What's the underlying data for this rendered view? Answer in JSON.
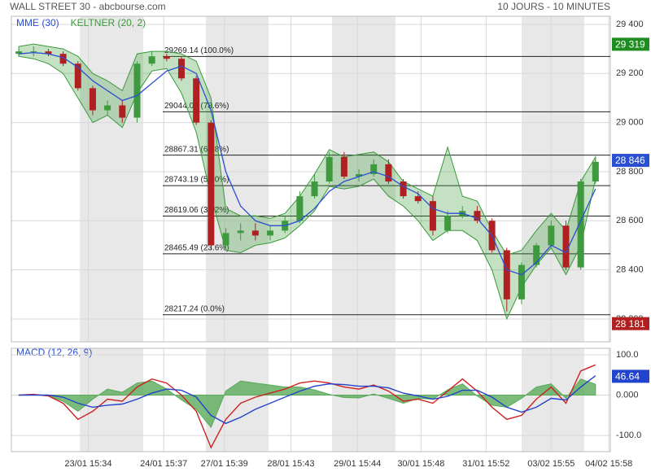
{
  "chart_data": [
    {
      "type": "candlestick",
      "title": "WALL STREET 30 - abcbourse.com",
      "subtitle": "10 JOURS - 10 MINUTES",
      "x": [
        0,
        1,
        2,
        3,
        4,
        5,
        6,
        7,
        8,
        9,
        10,
        11,
        12,
        13,
        14,
        15,
        16,
        17,
        18,
        19,
        20,
        21,
        22,
        23,
        24,
        25,
        26,
        27,
        28,
        29,
        30,
        31,
        32,
        33,
        34,
        35,
        36,
        37,
        38,
        39
      ],
      "xlim": [
        -0.5,
        40
      ],
      "xticks": [
        {
          "value": 4.7,
          "label": "23/01 15:34"
        },
        {
          "value": 9.8,
          "label": "24/01 15:37"
        },
        {
          "value": 13.9,
          "label": "27/01 15:39"
        },
        {
          "value": 18.4,
          "label": "28/01 15:43"
        },
        {
          "value": 22.9,
          "label": "29/01 15:44"
        },
        {
          "value": 27.2,
          "label": "30/01 15:48"
        },
        {
          "value": 31.6,
          "label": "31/01 15:52"
        },
        {
          "value": 36.0,
          "label": "03/02 15:55"
        },
        {
          "value": 39.9,
          "label": "04/02 15:58"
        }
      ],
      "ylim": [
        28107,
        29433
      ],
      "yticks": [
        {
          "value": 28200,
          "label": "28 200"
        },
        {
          "value": 28400,
          "label": "28 400"
        },
        {
          "value": 28600,
          "label": "28 600"
        },
        {
          "value": 28800,
          "label": "28 800"
        },
        {
          "value": 29000,
          "label": "29 000"
        },
        {
          "value": 29200,
          "label": "29 200"
        },
        {
          "value": 29400,
          "label": "29 400"
        }
      ],
      "grid": true,
      "up_color": "#3f9a3f",
      "down_color": "#b02020",
      "open": [
        29280,
        29290,
        29290,
        29280,
        29240,
        29140,
        29050,
        29070,
        29020,
        29240,
        29270,
        29260,
        29180,
        29000,
        28500,
        28550,
        28560,
        28540,
        28560,
        28600,
        28700,
        28760,
        28860,
        28780,
        28790,
        28830,
        28760,
        28700,
        28680,
        28560,
        28620,
        28640,
        28600,
        28480,
        28280,
        28420,
        28500,
        28580,
        28410,
        28760
      ],
      "high": [
        29300,
        29310,
        29300,
        29290,
        29250,
        29150,
        29090,
        29090,
        29250,
        29290,
        29280,
        29270,
        29190,
        29010,
        28570,
        28590,
        28590,
        28580,
        28620,
        28720,
        28790,
        28880,
        28880,
        28810,
        28850,
        28850,
        28770,
        28720,
        28700,
        28640,
        28660,
        28660,
        28610,
        28490,
        28430,
        28510,
        28600,
        28600,
        28770,
        28860
      ],
      "low": [
        29270,
        29270,
        29270,
        29230,
        29130,
        29030,
        29030,
        29000,
        29000,
        29230,
        29250,
        29170,
        28990,
        28480,
        28490,
        28520,
        28520,
        28520,
        28550,
        28590,
        28690,
        28750,
        28770,
        28760,
        28780,
        28750,
        28690,
        28670,
        28540,
        28550,
        28610,
        28590,
        28470,
        28230,
        28260,
        28410,
        28490,
        28400,
        28400,
        28750
      ],
      "close": [
        29290,
        29290,
        29280,
        29240,
        29140,
        29050,
        29070,
        29020,
        29240,
        29270,
        29260,
        29180,
        29000,
        28500,
        28550,
        28560,
        28540,
        28560,
        28600,
        28700,
        28760,
        28860,
        28780,
        28790,
        28830,
        28760,
        28700,
        28680,
        28560,
        28620,
        28640,
        28600,
        28480,
        28280,
        28420,
        28500,
        28580,
        28410,
        28760,
        28840
      ],
      "series": [
        {
          "name": "MME (30)",
          "color": "#2a4fd0",
          "values": [
            29280,
            29285,
            29280,
            29265,
            29225,
            29170,
            29130,
            29090,
            29110,
            29160,
            29210,
            29230,
            29200,
            29050,
            28800,
            28660,
            28600,
            28580,
            28580,
            28600,
            28650,
            28720,
            28760,
            28780,
            28800,
            28780,
            28740,
            28710,
            28650,
            28630,
            28630,
            28610,
            28540,
            28400,
            28380,
            28430,
            28500,
            28470,
            28600,
            28730
          ]
        },
        {
          "name": "KELTNER (20, 2)",
          "color": "#3a9a3a",
          "upper": [
            29310,
            29320,
            29310,
            29300,
            29270,
            29200,
            29170,
            29130,
            29280,
            29290,
            29290,
            29280,
            29250,
            29100,
            28650,
            28620,
            28620,
            28610,
            28630,
            28700,
            28790,
            28890,
            28860,
            28870,
            28880,
            28840,
            28760,
            28730,
            28700,
            28900,
            28700,
            28680,
            28560,
            28460,
            28480,
            28560,
            28630,
            28560,
            28760,
            28860
          ],
          "lower": [
            29270,
            29260,
            29240,
            29200,
            29100,
            29000,
            29030,
            28980,
            29120,
            29210,
            29220,
            29120,
            28960,
            28700,
            28480,
            28470,
            28500,
            28510,
            28530,
            28580,
            28640,
            28740,
            28730,
            28740,
            28770,
            28700,
            28660,
            28600,
            28520,
            28560,
            28560,
            28520,
            28400,
            28200,
            28330,
            28420,
            28490,
            28380,
            28500,
            28770
          ]
        }
      ],
      "fib_levels": [
        {
          "value": 29269.14,
          "label": "29269.14  (100.0%)"
        },
        {
          "value": 29044.03,
          "label": "29044.03  (78.6%)"
        },
        {
          "value": 28867.31,
          "label": "28867.31  (61.8%)"
        },
        {
          "value": 28743.19,
          "label": "28743.19  (50.0%)"
        },
        {
          "value": 28619.06,
          "label": "28619.06  (38.2%)"
        },
        {
          "value": 28465.49,
          "label": "28465.49  (23.6%)"
        },
        {
          "value": 28217.24,
          "label": "28217.24  (0.0%)"
        }
      ],
      "price_markers": [
        {
          "value": 29319,
          "label": "29 319",
          "color": "#1e8c1e"
        },
        {
          "value": 28846,
          "label": "28 846",
          "color": "#2a4fd0"
        },
        {
          "value": 28181,
          "label": "28 181",
          "color": "#b02020"
        }
      ]
    },
    {
      "type": "line",
      "title": "MACD (12, 26, 9)",
      "ylim": [
        -140,
        116
      ],
      "yticks": [
        {
          "value": 100,
          "label": "100.0"
        },
        {
          "value": 0,
          "label": "0.000"
        },
        {
          "value": -100,
          "label": "-100.0"
        }
      ],
      "grid": true,
      "series": [
        {
          "kind": "area",
          "color": "#5aaa5a",
          "values": [
            0,
            2,
            -2,
            -15,
            -40,
            -10,
            15,
            7,
            30,
            35,
            15,
            -12,
            -35,
            -80,
            10,
            35,
            30,
            25,
            20,
            20,
            13,
            2,
            -6,
            -7,
            3,
            -8,
            -20,
            -8,
            -10,
            13,
            28,
            -2,
            -25,
            -30,
            -8,
            20,
            28,
            -8,
            40,
            27
          ]
        },
        {
          "kind": "line",
          "color": "#cc2222",
          "values": [
            0,
            2,
            -2,
            -20,
            -60,
            -40,
            -10,
            -15,
            20,
            40,
            30,
            0,
            -40,
            -130,
            -60,
            -20,
            -5,
            5,
            15,
            30,
            35,
            30,
            20,
            15,
            25,
            10,
            -15,
            -10,
            -20,
            10,
            40,
            10,
            -30,
            -60,
            -50,
            -10,
            20,
            -20,
            60,
            75
          ]
        },
        {
          "kind": "line",
          "color": "#2244cc",
          "values": [
            0,
            0,
            0,
            -5,
            -20,
            -30,
            -25,
            -22,
            -10,
            5,
            15,
            12,
            -5,
            -50,
            -70,
            -55,
            -35,
            -20,
            -5,
            10,
            22,
            28,
            26,
            22,
            22,
            18,
            5,
            -2,
            -10,
            -3,
            12,
            12,
            -5,
            -30,
            -42,
            -30,
            -8,
            -12,
            20,
            48
          ]
        }
      ],
      "price_markers": [
        {
          "value": 46.64,
          "label": "46.64",
          "color": "#2244cc"
        }
      ]
    }
  ]
}
